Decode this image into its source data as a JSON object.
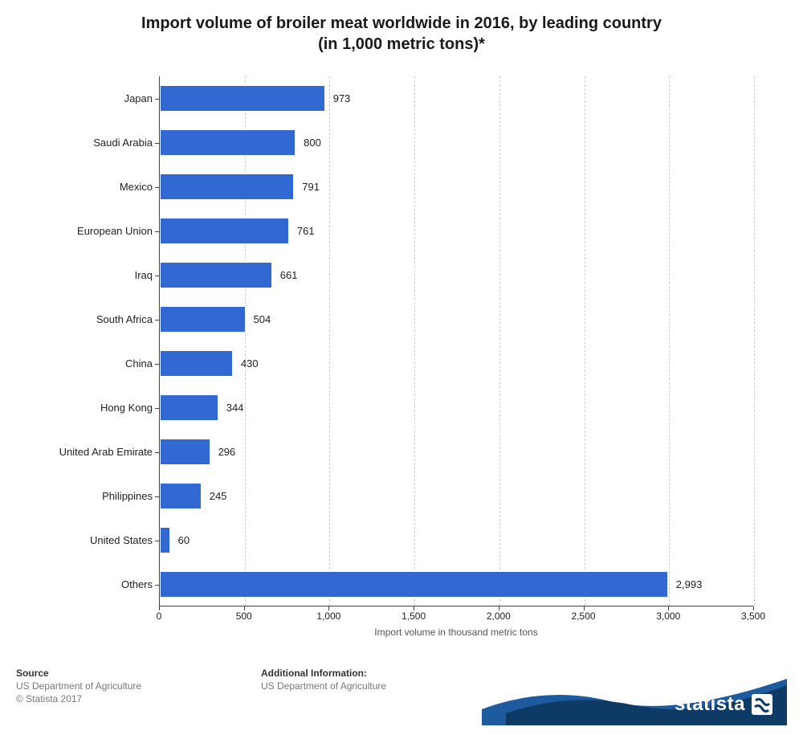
{
  "title_line1": "Import volume of broiler meat worldwide in 2016, by leading country",
  "title_line2": "(in 1,000 metric tons)*",
  "chart": {
    "type": "bar-horizontal",
    "bar_color": "#3168d2",
    "bar_border": "#ffffff",
    "background_color": "#ffffff",
    "grid_color": "#cccccc",
    "axis_color": "#444444",
    "label_fontsize": 13,
    "title_fontsize": 20,
    "xlim": [
      0,
      3500
    ],
    "xtick_step": 500,
    "xticks": [
      {
        "v": 0,
        "label": "0"
      },
      {
        "v": 500,
        "label": "500"
      },
      {
        "v": 1000,
        "label": "1,000"
      },
      {
        "v": 1500,
        "label": "1,500"
      },
      {
        "v": 2000,
        "label": "2,000"
      },
      {
        "v": 2500,
        "label": "2,500"
      },
      {
        "v": 3000,
        "label": "3,000"
      },
      {
        "v": 3500,
        "label": "3,500"
      }
    ],
    "x_axis_label": "Import volume in thousand metric tons",
    "categories": [
      {
        "label": "Japan",
        "value": 973,
        "value_label": "973"
      },
      {
        "label": "Saudi Arabia",
        "value": 800,
        "value_label": "800"
      },
      {
        "label": "Mexico",
        "value": 791,
        "value_label": "791"
      },
      {
        "label": "European Union",
        "value": 761,
        "value_label": "761"
      },
      {
        "label": "Iraq",
        "value": 661,
        "value_label": "661"
      },
      {
        "label": "South Africa",
        "value": 504,
        "value_label": "504"
      },
      {
        "label": "China",
        "value": 430,
        "value_label": "430"
      },
      {
        "label": "Hong Kong",
        "value": 344,
        "value_label": "344"
      },
      {
        "label": "United Arab Emirate",
        "value": 296,
        "value_label": "296"
      },
      {
        "label": "Philippines",
        "value": 245,
        "value_label": "245"
      },
      {
        "label": "United States",
        "value": 60,
        "value_label": "60"
      },
      {
        "label": "Others",
        "value": 2993,
        "value_label": "2,993"
      }
    ]
  },
  "footer": {
    "source_title": "Source",
    "source_text1": "US Department of Agriculture",
    "source_text2": "© Statista 2017",
    "addl_title": "Additional Information:",
    "addl_text": "US Department of Agriculture",
    "logo_text": "statista",
    "logo_wave_dark": "#0d3b66",
    "logo_wave_light": "#1e5a9e"
  }
}
